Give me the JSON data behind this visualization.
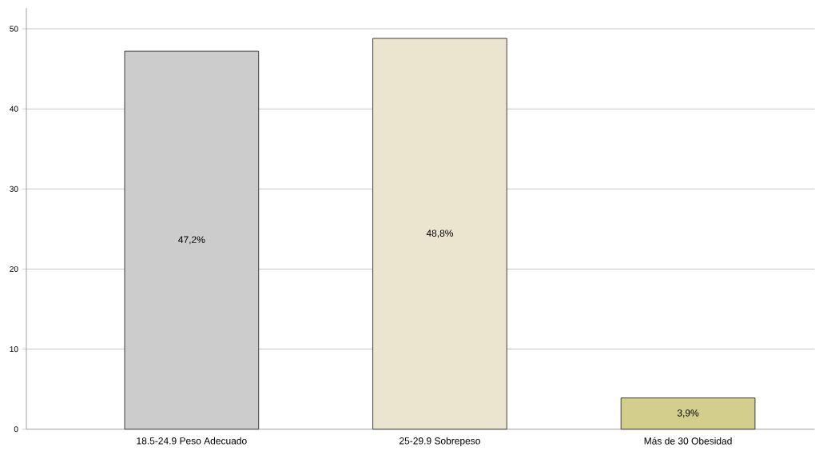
{
  "chart_data": {
    "type": "bar",
    "categories": [
      "18.5-24.9 Peso  Adecuado",
      "25-29.9 Sobrepeso",
      "Más de 30 Obesidad"
    ],
    "values": [
      47.2,
      48.8,
      3.9
    ],
    "colors": [
      "#cccccc",
      "#ebe4cf",
      "#d3ce8c"
    ],
    "value_labels": [
      "47,2%",
      "48,8%",
      "3,9%"
    ],
    "ylim": [
      0,
      52.6
    ],
    "yticks": [
      0,
      10,
      20,
      30,
      40,
      50
    ],
    "grid": "y"
  }
}
